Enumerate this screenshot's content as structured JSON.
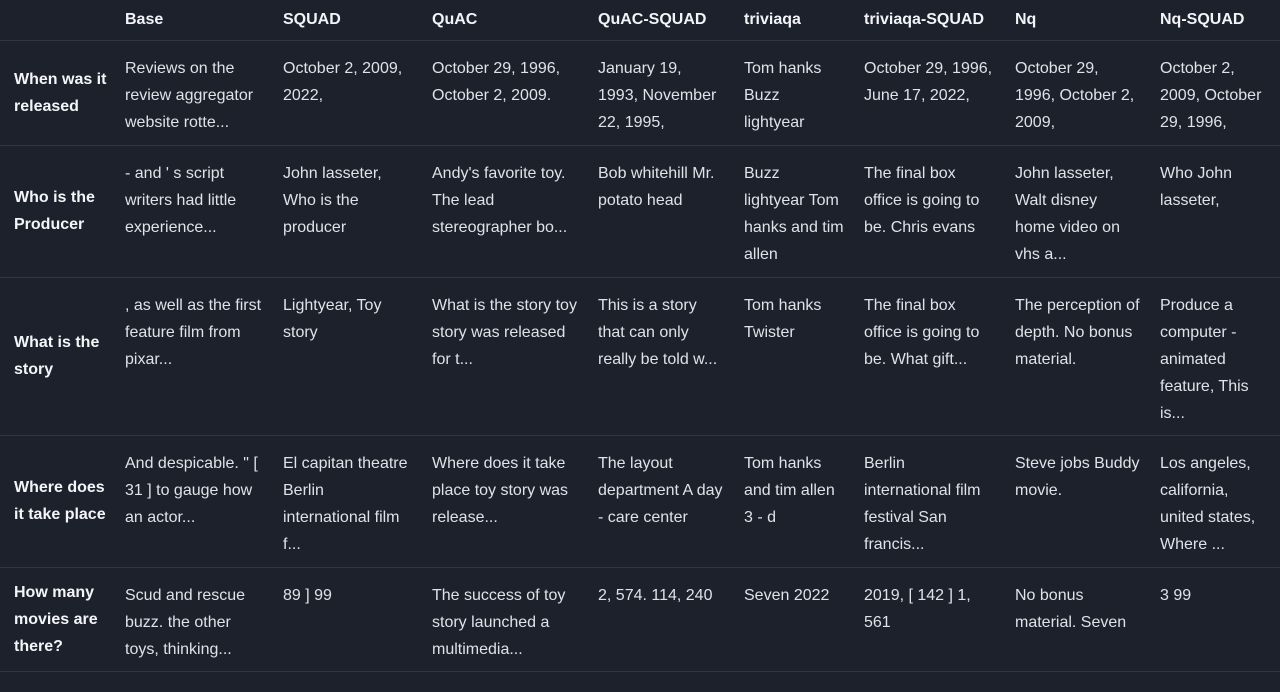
{
  "table": {
    "columns": [
      "",
      "Base",
      "SQUAD",
      "QuAC",
      "QuAC-SQUAD",
      "triviaqa",
      "triviaqa-SQUAD",
      "Nq",
      "Nq-SQUAD"
    ],
    "rows": [
      {
        "question": "When was it released",
        "cells": [
          "Reviews on the review aggregator website rotte...",
          "October 2, 2009, 2022,",
          "October 29, 1996, October 2, 2009.",
          "January 19, 1993, November 22, 1995,",
          "Tom hanks Buzz lightyear",
          "October 29, 1996, June 17, 2022,",
          "October 29, 1996, October 2, 2009,",
          "October 2, 2009, October 29, 1996,"
        ]
      },
      {
        "question": "Who is the Producer",
        "cells": [
          "- and ' s script writers had little experience...",
          "John lasseter, Who is the producer",
          "Andy's favorite toy. The lead stereographer bo...",
          "Bob whitehill Mr. potato head",
          "Buzz lightyear Tom hanks and tim allen",
          "The final box office is going to be. Chris evans",
          "John lasseter, Walt disney home video on vhs a...",
          "Who John lasseter,"
        ]
      },
      {
        "question": "What is the story",
        "cells": [
          ", as well as the first feature film from pixar...",
          "Lightyear, Toy story",
          "What is the story toy story was released for t...",
          "This is a story that can only really be told w...",
          "Tom hanks Twister",
          "The final box office is going to be. What gift...",
          "The perception of depth. No bonus material.",
          "Produce a computer - animated feature, This is..."
        ]
      },
      {
        "question": "Where does it take place",
        "cells": [
          "And despicable. \" [ 31 ] to gauge how an actor...",
          "El capitan theatre Berlin international film f...",
          "Where does it take place toy story was release...",
          "The layout department A day - care center",
          "Tom hanks and tim allen 3 - d",
          "Berlin international film festival San francis...",
          "Steve jobs Buddy movie.",
          "Los angeles, california, united states, Where ..."
        ]
      },
      {
        "question": "How many movies are there?",
        "cells": [
          "Scud and rescue buzz. the other toys, thinking...",
          "89 ] 99",
          "The success of toy story launched a multimedia...",
          "2, 574. 114, 240",
          "Seven 2022",
          "2019, [ 142 ] 1, 561",
          "No bonus material. Seven",
          "3 99"
        ]
      }
    ]
  }
}
